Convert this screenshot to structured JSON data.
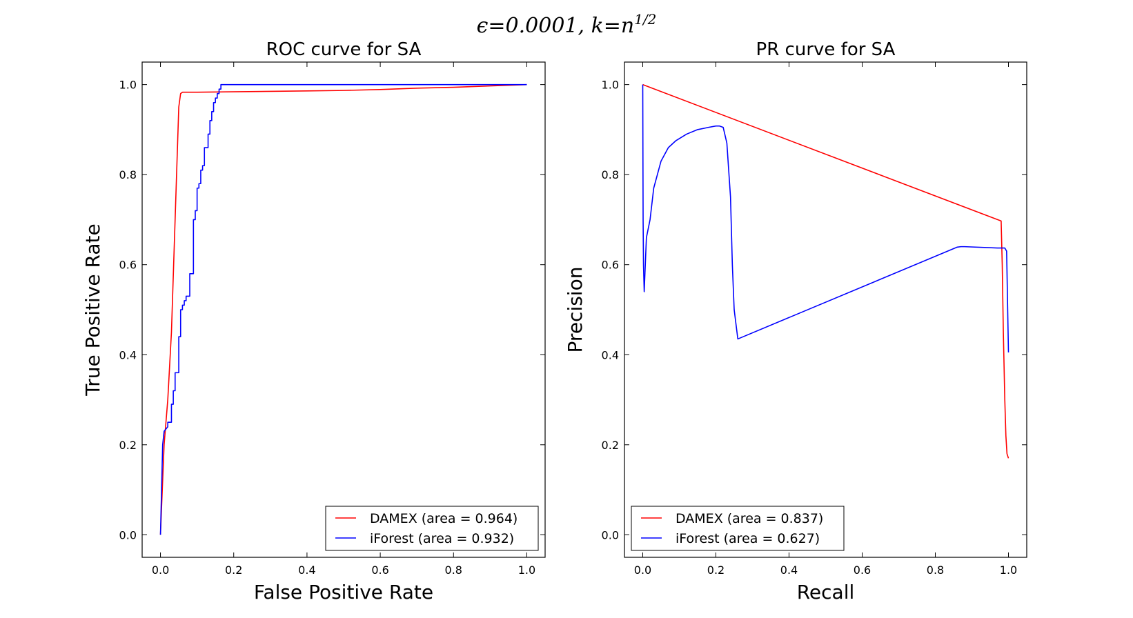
{
  "figure": {
    "suptitle": "ϵ=0.0001, k=n",
    "suptitle_sup": "1/2"
  },
  "chart_data": [
    {
      "type": "line",
      "title": "ROC curve for SA",
      "xlabel": "False Positive Rate",
      "ylabel": "True Positive Rate",
      "xlim": [
        -0.05,
        1.05
      ],
      "ylim": [
        -0.05,
        1.05
      ],
      "xticks": [
        0.0,
        0.2,
        0.4,
        0.6,
        0.8,
        1.0
      ],
      "yticks": [
        0.0,
        0.2,
        0.4,
        0.6,
        0.8,
        1.0
      ],
      "grid": false,
      "legend_loc": "lower right",
      "series": [
        {
          "name": "DAMEX (area = 0.964)",
          "color": "#ff0000",
          "x": [
            0.0,
            0.005,
            0.01,
            0.02,
            0.03,
            0.04,
            0.05,
            0.055,
            0.06,
            0.1,
            0.2,
            0.3,
            0.4,
            0.5,
            0.6,
            0.7,
            0.8,
            0.9,
            1.0
          ],
          "y": [
            0.0,
            0.1,
            0.2,
            0.3,
            0.45,
            0.7,
            0.95,
            0.98,
            0.983,
            0.983,
            0.984,
            0.985,
            0.986,
            0.987,
            0.989,
            0.992,
            0.994,
            0.997,
            1.0
          ]
        },
        {
          "name": "iForest (area = 0.932)",
          "color": "#0000ff",
          "x": [
            0.0,
            0.003,
            0.006,
            0.01,
            0.02,
            0.02,
            0.03,
            0.03,
            0.035,
            0.035,
            0.04,
            0.04,
            0.05,
            0.05,
            0.055,
            0.055,
            0.06,
            0.06,
            0.065,
            0.065,
            0.07,
            0.07,
            0.08,
            0.08,
            0.09,
            0.09,
            0.095,
            0.095,
            0.1,
            0.1,
            0.105,
            0.105,
            0.11,
            0.11,
            0.115,
            0.115,
            0.12,
            0.12,
            0.13,
            0.13,
            0.135,
            0.135,
            0.14,
            0.14,
            0.145,
            0.145,
            0.15,
            0.15,
            0.155,
            0.155,
            0.16,
            0.16,
            0.165,
            0.165,
            0.3,
            0.5,
            0.7,
            0.9,
            1.0
          ],
          "y": [
            0.0,
            0.1,
            0.2,
            0.23,
            0.24,
            0.25,
            0.25,
            0.29,
            0.29,
            0.32,
            0.32,
            0.36,
            0.36,
            0.44,
            0.44,
            0.5,
            0.5,
            0.51,
            0.51,
            0.52,
            0.52,
            0.53,
            0.53,
            0.58,
            0.58,
            0.7,
            0.7,
            0.72,
            0.72,
            0.77,
            0.77,
            0.78,
            0.78,
            0.81,
            0.81,
            0.82,
            0.82,
            0.86,
            0.86,
            0.89,
            0.89,
            0.92,
            0.92,
            0.94,
            0.94,
            0.96,
            0.96,
            0.97,
            0.97,
            0.98,
            0.98,
            0.99,
            0.99,
            1.0,
            1.0,
            1.0,
            1.0,
            1.0,
            1.0
          ]
        }
      ]
    },
    {
      "type": "line",
      "title": "PR curve for SA",
      "xlabel": "Recall",
      "ylabel": "Precision",
      "xlim": [
        -0.05,
        1.05
      ],
      "ylim": [
        -0.05,
        1.05
      ],
      "xticks": [
        0.0,
        0.2,
        0.4,
        0.6,
        0.8,
        1.0
      ],
      "yticks": [
        0.0,
        0.2,
        0.4,
        0.6,
        0.8,
        1.0
      ],
      "grid": false,
      "legend_loc": "lower left",
      "series": [
        {
          "name": "DAMEX (area = 0.837)",
          "color": "#ff0000",
          "x": [
            0.0,
            0.98,
            0.983,
            0.986,
            0.99,
            0.993,
            0.996,
            1.0
          ],
          "y": [
            1.0,
            0.697,
            0.6,
            0.45,
            0.3,
            0.22,
            0.18,
            0.17
          ]
        },
        {
          "name": "iForest (area = 0.627)",
          "color": "#0000ff",
          "x": [
            0.0,
            0.001,
            0.002,
            0.004,
            0.006,
            0.01,
            0.02,
            0.03,
            0.05,
            0.07,
            0.09,
            0.12,
            0.15,
            0.18,
            0.2,
            0.21,
            0.22,
            0.23,
            0.24,
            0.245,
            0.25,
            0.26,
            0.86,
            0.87,
            0.88,
            0.97,
            0.99,
            0.995,
            1.0
          ],
          "y": [
            1.0,
            0.7,
            0.6,
            0.54,
            0.58,
            0.66,
            0.7,
            0.77,
            0.83,
            0.86,
            0.875,
            0.89,
            0.9,
            0.905,
            0.908,
            0.908,
            0.905,
            0.87,
            0.75,
            0.6,
            0.5,
            0.435,
            0.639,
            0.64,
            0.64,
            0.637,
            0.637,
            0.63,
            0.405
          ]
        }
      ]
    }
  ]
}
